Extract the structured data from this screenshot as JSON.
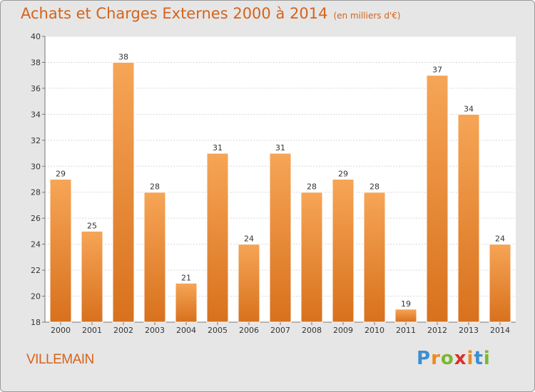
{
  "chart_data": {
    "type": "bar",
    "title": "Achats et Charges Externes 2000 à 2014",
    "subtitle": "(en milliers d'€)",
    "categories": [
      "2000",
      "2001",
      "2002",
      "2003",
      "2004",
      "2005",
      "2006",
      "2007",
      "2008",
      "2009",
      "2010",
      "2011",
      "2012",
      "2013",
      "2014"
    ],
    "values": [
      29,
      25,
      38,
      28,
      21,
      31,
      24,
      31,
      28,
      29,
      28,
      19,
      37,
      34,
      24
    ],
    "ylim": [
      18,
      40
    ],
    "yticks": [
      18,
      20,
      22,
      24,
      26,
      28,
      30,
      32,
      34,
      36,
      38,
      40
    ],
    "grid": true,
    "bar_color": "#f0892f",
    "bar_color_light": "#f6a556",
    "bar_color_dark": "#d8711d"
  },
  "footer": {
    "place": "VILLEMAIN",
    "logo_letters": [
      {
        "ch": "P",
        "color": "#3a8fd0"
      },
      {
        "ch": "r",
        "color": "#f08a1d"
      },
      {
        "ch": "o",
        "color": "#7ab72e"
      },
      {
        "ch": "x",
        "color": "#d8322c"
      },
      {
        "ch": "i",
        "color": "#f08a1d"
      },
      {
        "ch": "t",
        "color": "#3a8fd0"
      },
      {
        "ch": "i",
        "color": "#7ab72e"
      }
    ]
  },
  "colors": {
    "accent": "#d4631b",
    "background": "#e6e6e6"
  }
}
